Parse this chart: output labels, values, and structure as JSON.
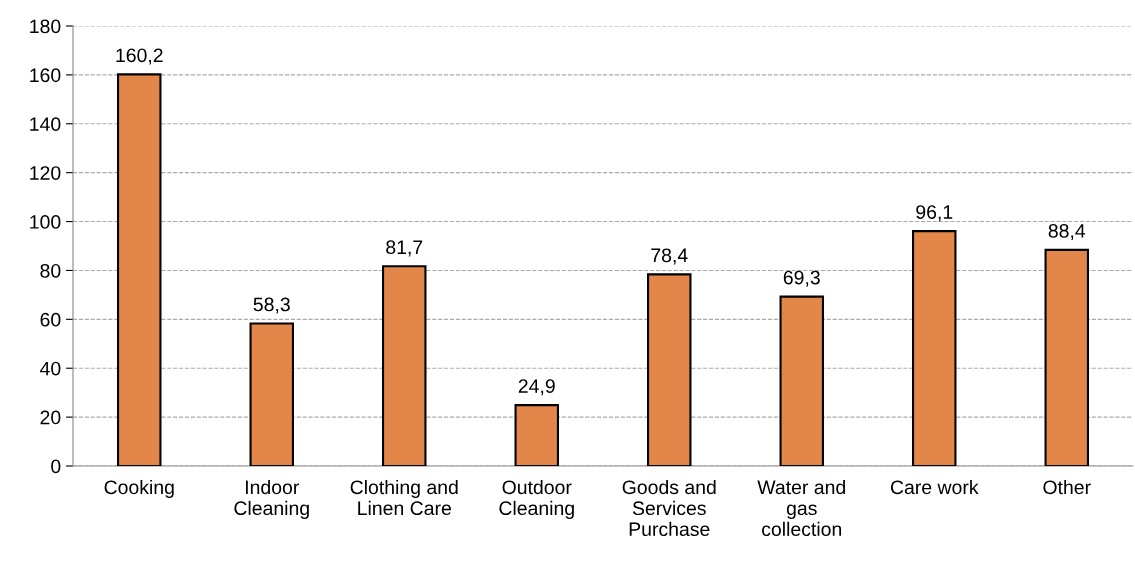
{
  "chart_data": {
    "type": "bar",
    "categories": [
      "Cooking",
      "Indoor\nCleaning",
      "Clothing and\nLinen Care",
      "Outdoor\nCleaning",
      "Goods and\nServices\nPurchase",
      "Water and\ngas\ncollection",
      "Care work",
      "Other"
    ],
    "values": [
      160.2,
      58.3,
      81.7,
      24.9,
      78.4,
      69.3,
      96.1,
      88.4
    ],
    "value_labels": [
      "160,2",
      "58,3",
      "81,7",
      "24,9",
      "78,4",
      "69,3",
      "96,1",
      "88,4"
    ],
    "color": "#e3864a",
    "ylim": [
      0,
      180
    ],
    "yticks": [
      0,
      20,
      40,
      60,
      80,
      100,
      120,
      140,
      160,
      180
    ],
    "grid": "y",
    "legend": false
  }
}
